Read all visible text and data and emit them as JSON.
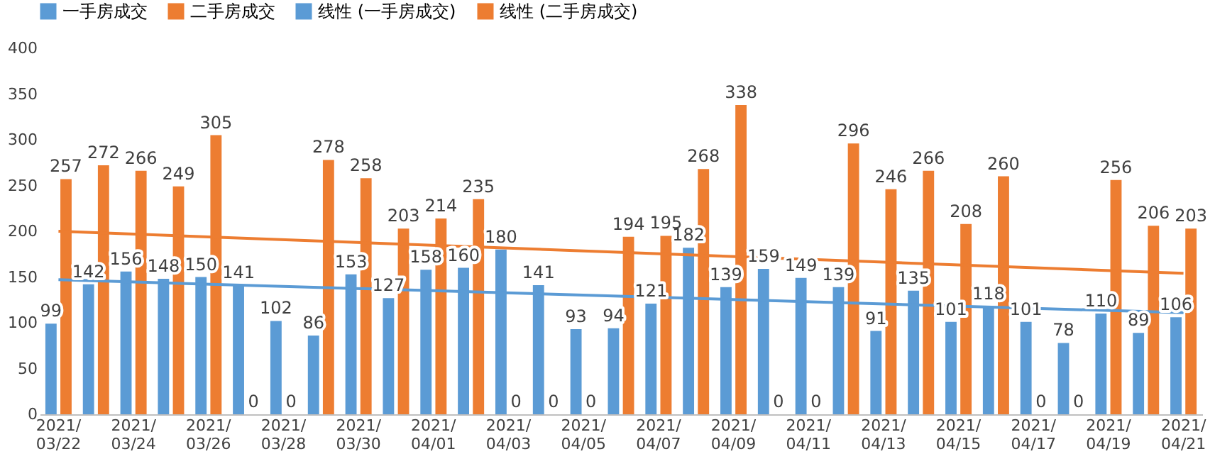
{
  "chart_data": {
    "type": "bar",
    "categories": [
      "2021/03/22",
      null,
      "2021/03/24",
      null,
      "2021/03/26",
      null,
      "2021/03/28",
      null,
      "2021/03/30",
      null,
      "2021/04/01",
      null,
      "2021/04/03",
      null,
      "2021/04/05",
      null,
      "2021/04/07",
      null,
      "2021/04/09",
      null,
      "2021/04/11",
      null,
      "2021/04/13",
      null,
      "2021/04/15",
      null,
      "2021/04/17",
      null,
      "2021/04/19",
      null,
      "2021/04/21"
    ],
    "series": [
      {
        "name": "一手房成交",
        "color": "#5b9bd5",
        "values": [
          99,
          142,
          156,
          148,
          150,
          141,
          102,
          86,
          153,
          127,
          158,
          160,
          180,
          141,
          93,
          94,
          121,
          182,
          139,
          159,
          149,
          139,
          91,
          135,
          101,
          118,
          101,
          78,
          110,
          89,
          106
        ],
        "value_labels": [
          "99",
          "142",
          "156",
          "148",
          "150",
          "141",
          "102",
          "86",
          "153",
          "127",
          "158",
          "160",
          "180",
          "141",
          "93",
          "94",
          "121",
          "182",
          "139",
          "159",
          "149",
          "139",
          "91",
          "135",
          "101",
          "118",
          "101",
          "78",
          "110",
          "89",
          "106"
        ]
      },
      {
        "name": "二手房成交",
        "color": "#ed7d31",
        "values": [
          257,
          272,
          266,
          249,
          305,
          0,
          0,
          278,
          258,
          203,
          214,
          235,
          0,
          0,
          0,
          194,
          195,
          268,
          338,
          0,
          0,
          296,
          246,
          266,
          208,
          260,
          0,
          0,
          256,
          206,
          203
        ],
        "value_labels": [
          "257",
          "272",
          "266",
          "249",
          "305",
          "0",
          "0",
          "278",
          "258",
          "203",
          "214",
          "235",
          "0",
          "0",
          "0",
          "194",
          "195",
          "268",
          "338",
          "0",
          "0",
          "296",
          "246",
          "266",
          "208",
          "260",
          "0",
          "0",
          "256",
          "206",
          "203"
        ]
      },
      {
        "name": "线性 (一手房成交)",
        "type": "line",
        "color": "#5b9bd5",
        "x": [
          "2021/03/22",
          "2021/04/21"
        ],
        "values": [
          147,
          111
        ]
      },
      {
        "name": "线性 (二手房成交)",
        "type": "line",
        "color": "#ed7d31",
        "x": [
          "2021/03/22",
          "2021/04/21"
        ],
        "values": [
          200,
          154
        ]
      }
    ],
    "ylim": [
      0,
      400
    ],
    "yticks": [
      0,
      50,
      100,
      150,
      200,
      250,
      300,
      350,
      400
    ],
    "grid": false,
    "legend": "top"
  }
}
